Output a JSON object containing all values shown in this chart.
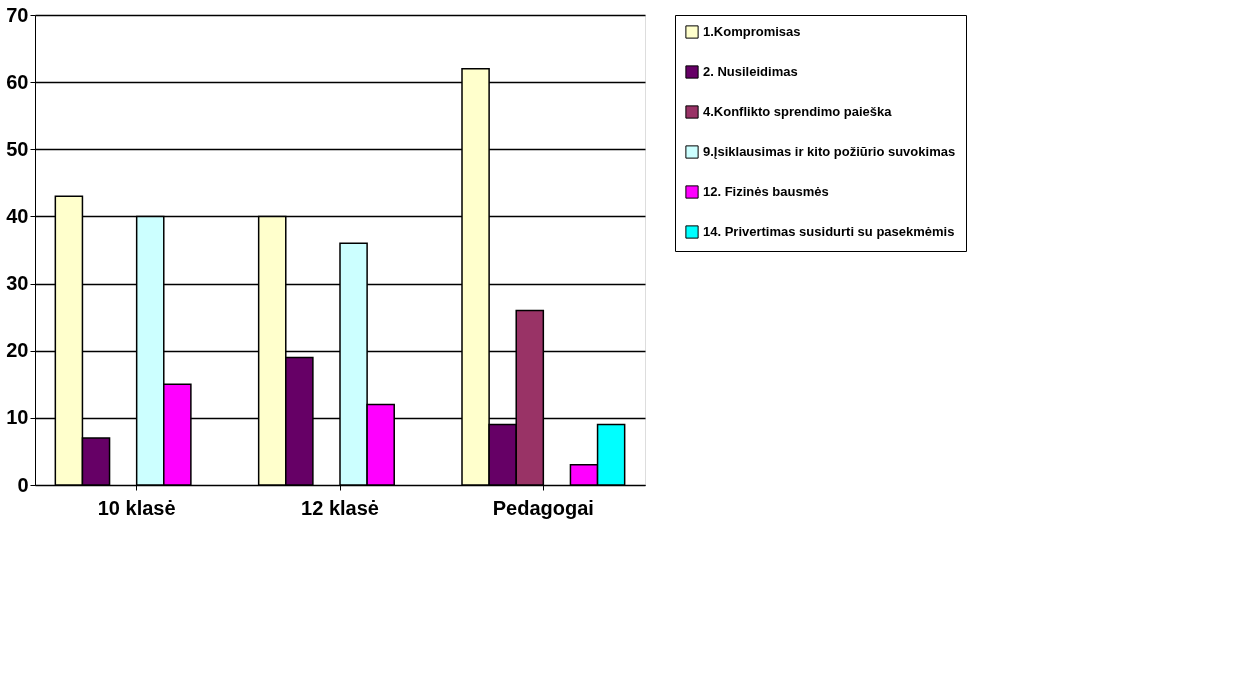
{
  "chart_data": {
    "type": "bar",
    "categories": [
      "10 klasė",
      "12 klasė",
      "Pedagogai"
    ],
    "series": [
      {
        "name": "1.Kompromisas",
        "color": "#ffffcc",
        "values": [
          43,
          40,
          62
        ]
      },
      {
        "name": "2. Nusileidimas",
        "color": "#660066",
        "values": [
          7,
          19,
          9
        ]
      },
      {
        "name": "4.Konflikto sprendimo paieška",
        "color": "#993366",
        "values": [
          null,
          null,
          26
        ]
      },
      {
        "name": "9.Įsiklausimas ir kito požiūrio suvokimas",
        "color": "#ccffff",
        "values": [
          40,
          36,
          null
        ]
      },
      {
        "name": "12. Fizinės bausmės",
        "color": "#ff00ff",
        "values": [
          15,
          12,
          3
        ]
      },
      {
        "name": "14. Privertimas susidurti su pasekmėmis",
        "color": "#00ffff",
        "values": [
          null,
          null,
          9
        ]
      }
    ],
    "ylim": [
      0,
      70
    ],
    "yticks": [
      0,
      10,
      20,
      30,
      40,
      50,
      60,
      70
    ],
    "grid": "y",
    "legend": "right"
  }
}
